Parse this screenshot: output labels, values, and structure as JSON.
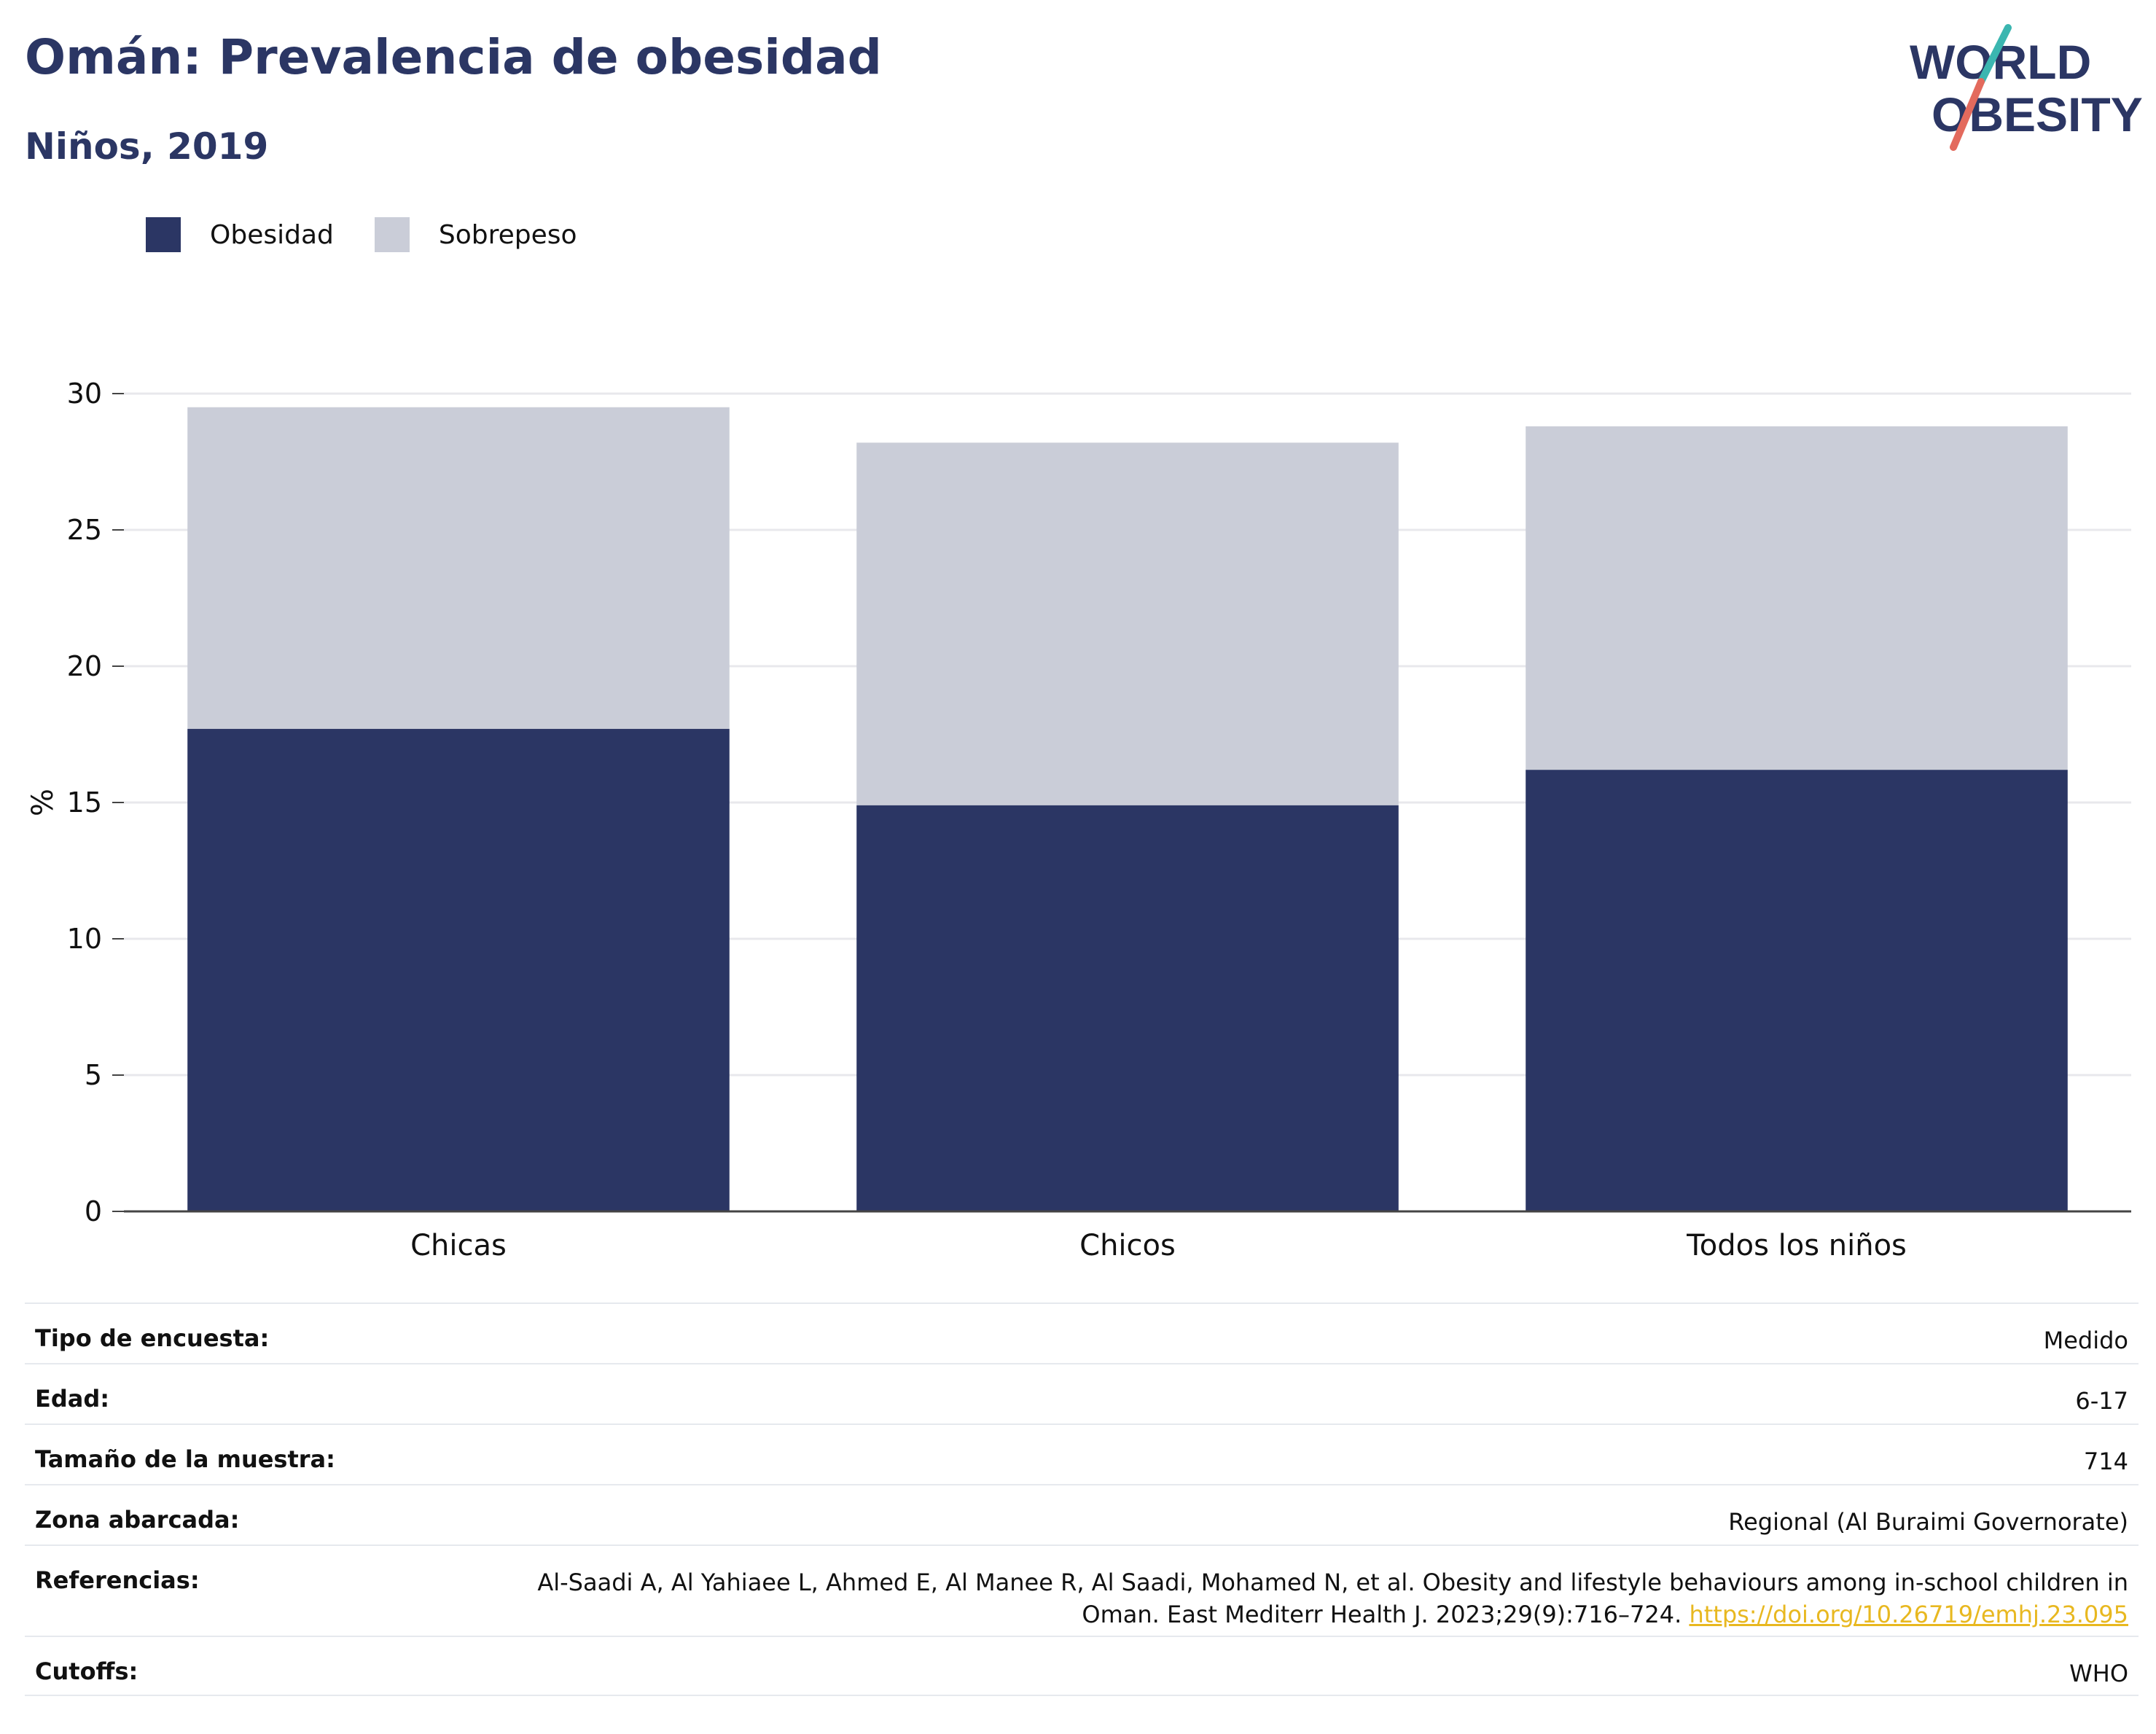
{
  "header": {
    "title": "Omán: Prevalencia de obesidad",
    "subtitle": "Niños, 2019"
  },
  "logo": {
    "line1": "WORLD",
    "line2": "OBESITY"
  },
  "colors": {
    "obesity": "#2b3664",
    "overweight": "#cacdd8",
    "accent_teal": "#3bb6b0",
    "accent_coral": "#e36a5d",
    "link": "#e8b820"
  },
  "chart_data": {
    "type": "bar",
    "stacked": true,
    "categories": [
      "Chicas",
      "Chicos",
      "Todos los niños"
    ],
    "series": [
      {
        "name": "Obesidad",
        "values": [
          17.7,
          14.9,
          16.2
        ]
      },
      {
        "name": "Sobrepeso",
        "values": [
          11.8,
          13.3,
          12.6
        ]
      }
    ],
    "ylabel": "%",
    "ylim": [
      0,
      30
    ],
    "yticks": [
      0,
      5,
      10,
      15,
      20,
      25,
      30
    ],
    "grid": true,
    "legend_position": "top-left"
  },
  "info": [
    {
      "label": "Tipo de encuesta:",
      "value": "Medido"
    },
    {
      "label": "Edad:",
      "value": "6-17"
    },
    {
      "label": "Tamaño de la muestra:",
      "value": "714"
    },
    {
      "label": "Zona abarcada:",
      "value": "Regional (Al Buraimi Governorate)"
    },
    {
      "label": "Referencias:",
      "value": "Al-Saadi A, Al Yahiaee L, Ahmed E, Al Manee R, Al Saadi, Mohamed N, et al. Obesity and lifestyle behaviours among in-school children in Oman. East Mediterr Health J. 2023;29(9):716–724.",
      "link": "https://doi.org/10.26719/emhj.23.095"
    },
    {
      "label": "Cutoffs:",
      "value": "WHO"
    }
  ]
}
